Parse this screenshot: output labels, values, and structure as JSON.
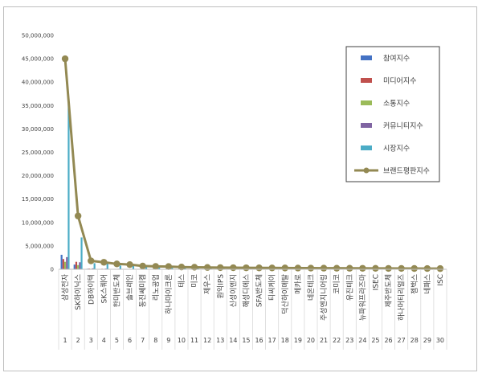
{
  "chart_data": {
    "type": "bar",
    "title": "",
    "xlabel": "",
    "ylabel": "",
    "ylim": [
      0,
      50000000
    ],
    "yticks": [
      0,
      5000000,
      10000000,
      15000000,
      20000000,
      25000000,
      30000000,
      35000000,
      40000000,
      45000000,
      50000000
    ],
    "ytick_labels": [
      "0",
      "5,000,000",
      "10,000,000",
      "15,000,000",
      "20,000,000",
      "25,000,000",
      "30,000,000",
      "35,000,000",
      "40,000,000",
      "45,000,000",
      "50,000,000"
    ],
    "grid": false,
    "legend_position": "top-right",
    "index_labels": [
      "1",
      "2",
      "3",
      "4",
      "5",
      "6",
      "7",
      "8",
      "9",
      "10",
      "11",
      "12",
      "13",
      "14",
      "15",
      "16",
      "17",
      "18",
      "19",
      "20",
      "21",
      "22",
      "23",
      "24",
      "25",
      "26",
      "27",
      "28",
      "29",
      "30"
    ],
    "categories": [
      "삼성전자",
      "SK하이닉스",
      "DB하이텍",
      "SK스퀘어",
      "한미반도체",
      "솔브레인",
      "동진쎄미켐",
      "리노공업",
      "하나마이크론",
      "테스",
      "미코",
      "제우스",
      "원익IPS",
      "신성이엔지",
      "해성디에스",
      "SFA반도체",
      "티씨케이",
      "덕산하이메탈",
      "메카로",
      "네온테크",
      "주성엔지니어링",
      "코미코",
      "유진테크",
      "뉴파워프라즈마",
      "ISEC",
      "제주반도체",
      "하나머티리얼즈",
      "젬백스",
      "네패스",
      "ISC"
    ],
    "series": [
      {
        "name": "참여지수",
        "kind": "bar",
        "color": "#4472c4",
        "values": [
          3100000,
          1000000,
          120000,
          80000,
          60000,
          50000,
          40000,
          30000,
          30000,
          20000,
          20000,
          20000,
          20000,
          15000,
          15000,
          15000,
          15000,
          15000,
          12000,
          12000,
          12000,
          10000,
          10000,
          10000,
          10000,
          10000,
          10000,
          10000,
          10000,
          10000
        ]
      },
      {
        "name": "미디어지수",
        "kind": "bar",
        "color": "#c0504d",
        "values": [
          2200000,
          1600000,
          150000,
          120000,
          90000,
          70000,
          60000,
          50000,
          40000,
          30000,
          30000,
          25000,
          25000,
          20000,
          20000,
          20000,
          20000,
          20000,
          15000,
          15000,
          15000,
          15000,
          15000,
          12000,
          12000,
          12000,
          12000,
          12000,
          12000,
          12000
        ]
      },
      {
        "name": "소통지수",
        "kind": "bar",
        "color": "#9bbb59",
        "values": [
          1600000,
          900000,
          100000,
          80000,
          60000,
          50000,
          40000,
          30000,
          30000,
          20000,
          20000,
          20000,
          20000,
          15000,
          15000,
          15000,
          15000,
          15000,
          12000,
          12000,
          12000,
          10000,
          10000,
          10000,
          10000,
          10000,
          10000,
          10000,
          10000,
          10000
        ]
      },
      {
        "name": "커뮤니티지수",
        "kind": "bar",
        "color": "#8064a2",
        "values": [
          2600000,
          1500000,
          200000,
          150000,
          100000,
          80000,
          60000,
          50000,
          50000,
          40000,
          30000,
          30000,
          30000,
          25000,
          25000,
          25000,
          20000,
          20000,
          20000,
          20000,
          15000,
          15000,
          15000,
          15000,
          15000,
          15000,
          15000,
          15000,
          15000,
          15000
        ]
      },
      {
        "name": "시장지수",
        "kind": "bar",
        "color": "#4bacc6",
        "values": [
          35500000,
          6800000,
          1300000,
          1200000,
          800000,
          700000,
          500000,
          450000,
          400000,
          350000,
          300000,
          280000,
          260000,
          250000,
          230000,
          220000,
          210000,
          200000,
          190000,
          180000,
          170000,
          160000,
          150000,
          140000,
          130000,
          120000,
          110000,
          100000,
          90000,
          80000
        ]
      },
      {
        "name": "브랜드평판지수",
        "kind": "line",
        "color": "#938953",
        "values": [
          45000000,
          11400000,
          1800000,
          1500000,
          1150000,
          1000000,
          700000,
          620000,
          580000,
          480000,
          440000,
          390000,
          360000,
          340000,
          320000,
          300000,
          290000,
          280000,
          260000,
          250000,
          240000,
          230000,
          220000,
          210000,
          200000,
          190000,
          180000,
          170000,
          160000,
          150000
        ]
      }
    ]
  }
}
